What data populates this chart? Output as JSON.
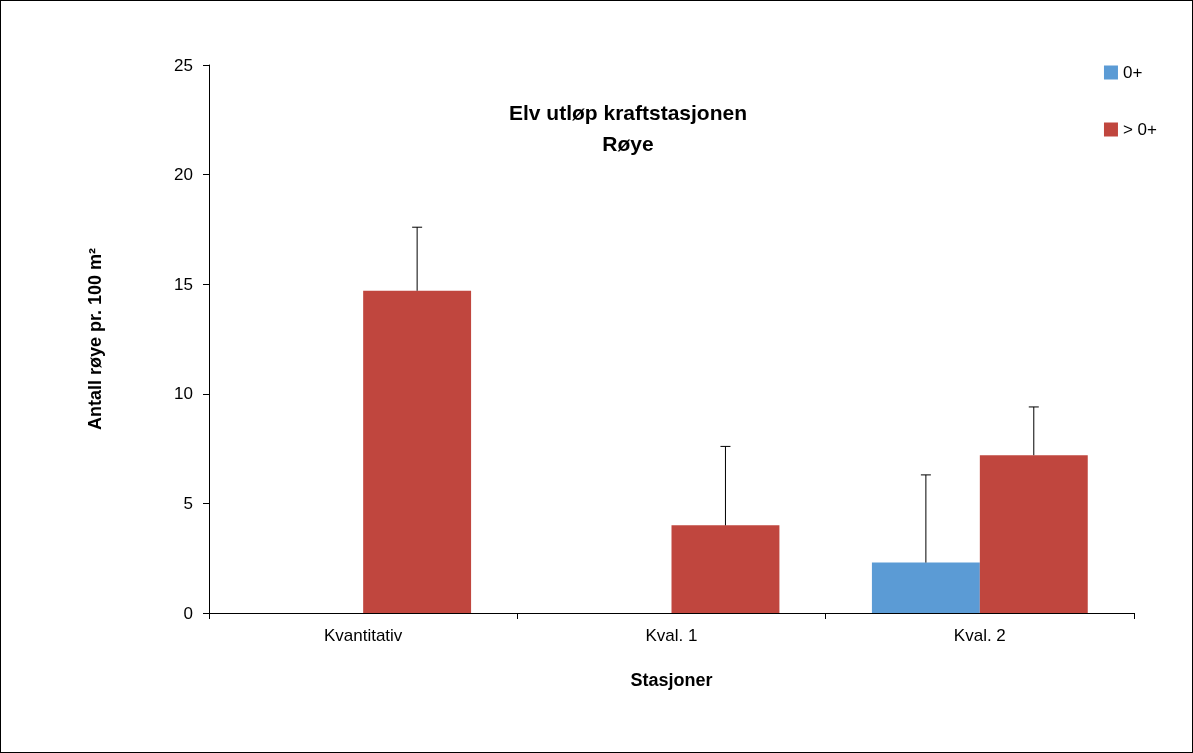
{
  "chart_data": {
    "type": "bar",
    "title": "Elv utløp kraftstasjonen",
    "subtitle": "Røye",
    "xlabel": "Stasjoner",
    "ylabel": "Antall røye pr. 100 m²",
    "categories": [
      "Kvantitativ",
      "Kval. 1",
      "Kval. 2"
    ],
    "series": [
      {
        "name": "0+",
        "color": "#5b9bd5",
        "values": [
          0,
          0,
          2.3
        ],
        "errors": [
          null,
          null,
          [
            2.3,
            6.3
          ]
        ]
      },
      {
        "name": "> 0+",
        "color": "#c0463e",
        "values": [
          14.7,
          4.0,
          7.2
        ],
        "errors": [
          [
            14.7,
            17.6
          ],
          [
            4.0,
            7.6
          ],
          [
            7.2,
            9.4
          ]
        ]
      }
    ],
    "ylim": [
      0,
      25
    ],
    "yticks": [
      0,
      5,
      10,
      15,
      20,
      25
    ],
    "grid": false,
    "legend": "top right"
  }
}
